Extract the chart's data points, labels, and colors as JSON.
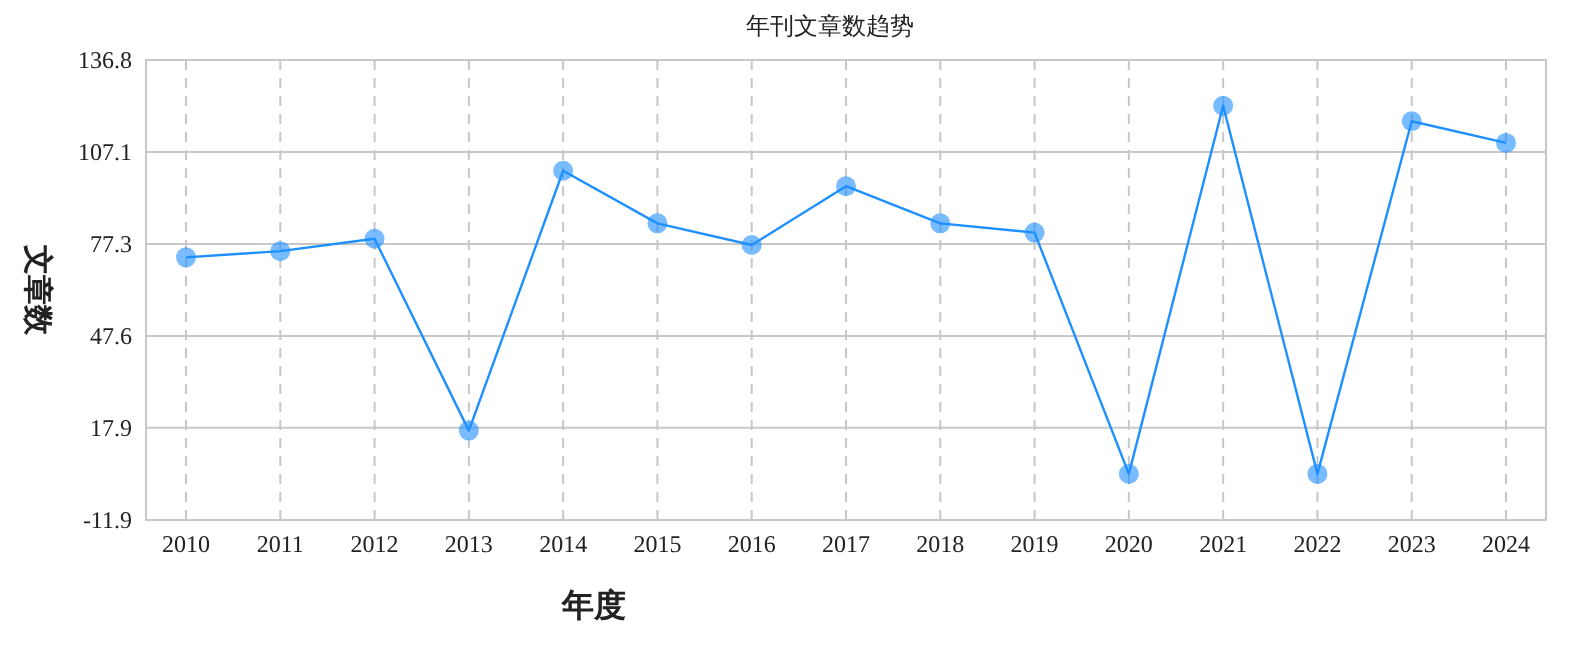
{
  "chart_data": {
    "type": "line",
    "title": "年刊文章数趋势",
    "xlabel": "年度",
    "ylabel": "文章数",
    "categories": [
      "2010",
      "2011",
      "2012",
      "2013",
      "2014",
      "2015",
      "2016",
      "2017",
      "2018",
      "2019",
      "2020",
      "2021",
      "2022",
      "2023",
      "2024"
    ],
    "series": [
      {
        "color": "#1e90ff",
        "values": [
          73,
          75,
          79,
          17,
          101,
          84,
          77,
          96,
          84,
          81,
          3,
          122,
          3,
          117,
          110
        ]
      }
    ],
    "ylim": [
      -11.9,
      136.8
    ],
    "yticks": [
      -11.9,
      17.9,
      47.6,
      77.3,
      107.1,
      136.8
    ],
    "grid": true,
    "marker": "circle"
  }
}
